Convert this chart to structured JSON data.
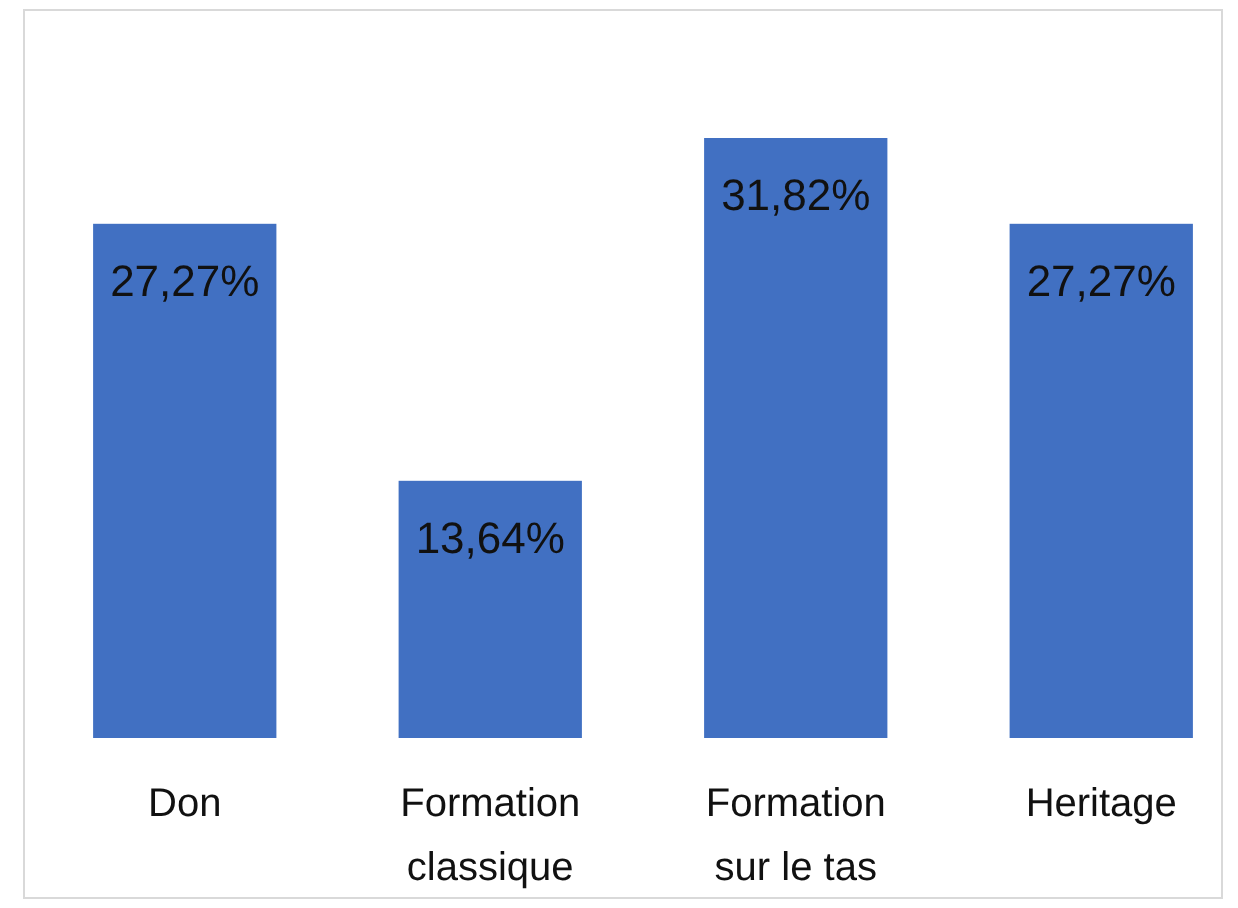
{
  "chart_data": {
    "type": "bar",
    "categories": [
      "Don",
      "Formation classique",
      "Formation sur le tas",
      "Heritage"
    ],
    "values": [
      27.27,
      13.64,
      31.82,
      27.27
    ],
    "color": "#4170c2",
    "value_labels": [
      "27,27%",
      "13,64%",
      "31,82%",
      "27,27%"
    ]
  }
}
